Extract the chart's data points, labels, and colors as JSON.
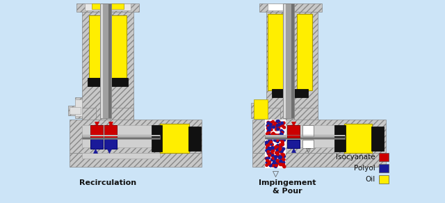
{
  "background_color": "#cce4f7",
  "legend_items": [
    {
      "label": "Isocyanate",
      "color": "#cc0000"
    },
    {
      "label": "Polyol",
      "color": "#1a1a99"
    },
    {
      "label": "Oil",
      "color": "#ffee00"
    }
  ],
  "label_left": "Recirculation",
  "label_right": "Impingement\n& Pour",
  "hatch_face": "#c8c8c8",
  "hatch_edge": "#888888",
  "metal_light": "#d8d8d8",
  "metal_mid": "#a0a0a0",
  "metal_dark": "#707070",
  "black": "#111111",
  "yellow": "#ffee00",
  "red": "#cc0000",
  "blue": "#1a1a99",
  "white": "#ffffff",
  "gray_inner": "#d0d0d0"
}
